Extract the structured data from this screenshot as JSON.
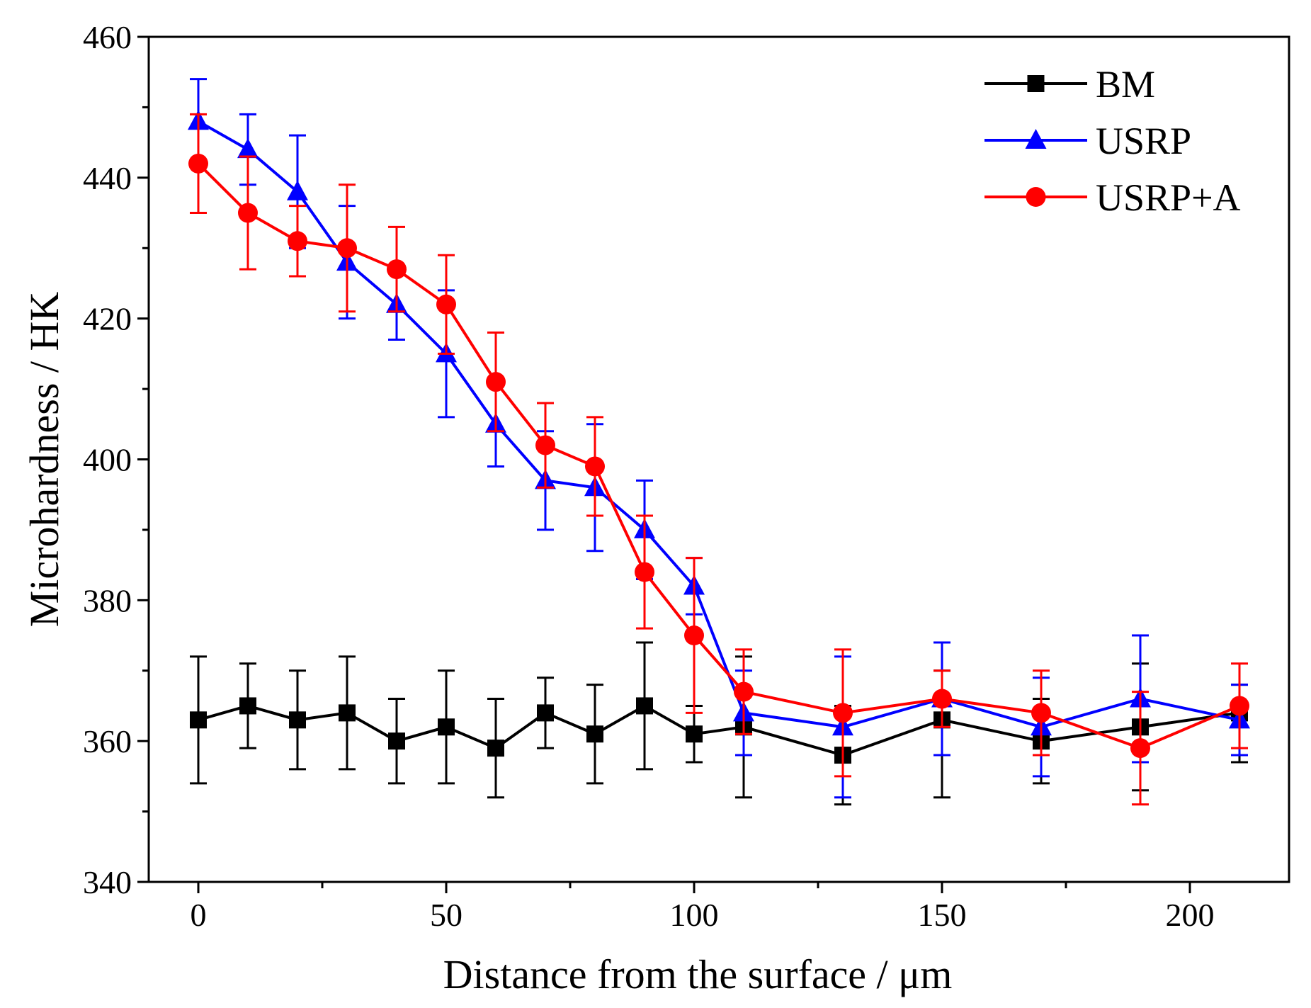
{
  "chart_data": {
    "type": "line",
    "title": "",
    "xlabel": "Distance from the surface / μm",
    "ylabel": "Microhardness / HK",
    "xlim": [
      -10,
      220
    ],
    "ylim": [
      340,
      460
    ],
    "xticks": [
      0,
      50,
      100,
      150,
      200
    ],
    "xtick_labels": [
      "0",
      "50",
      "100",
      "150",
      "200"
    ],
    "yticks": [
      340,
      360,
      380,
      400,
      420,
      440,
      460
    ],
    "ytick_labels": [
      "340",
      "360",
      "380",
      "400",
      "420",
      "440",
      "460"
    ],
    "grid": false,
    "legend_position": "top-right",
    "colors": {
      "BM": "#000000",
      "USRP": "#0000ff",
      "USRP+A": "#ff0000"
    },
    "series": [
      {
        "name": "BM",
        "marker": "square",
        "x": [
          0,
          10,
          20,
          30,
          40,
          50,
          60,
          70,
          80,
          90,
          100,
          110,
          130,
          150,
          170,
          190,
          210
        ],
        "y": [
          363,
          365,
          363,
          364,
          360,
          362,
          359,
          364,
          361,
          365,
          361,
          362,
          358,
          363,
          360,
          362,
          364
        ],
        "err_low": [
          354,
          359,
          356,
          356,
          354,
          354,
          352,
          359,
          354,
          356,
          357,
          352,
          351,
          352,
          354,
          353,
          357
        ],
        "err_high": [
          372,
          371,
          370,
          372,
          366,
          370,
          366,
          369,
          368,
          374,
          365,
          372,
          365,
          370,
          366,
          371,
          368
        ]
      },
      {
        "name": "USRP",
        "marker": "triangle",
        "x": [
          0,
          10,
          20,
          30,
          40,
          50,
          60,
          70,
          80,
          90,
          100,
          110,
          130,
          150,
          170,
          190,
          210
        ],
        "y": [
          448,
          444,
          438,
          428,
          422,
          415,
          405,
          397,
          396,
          390,
          382,
          364,
          362,
          366,
          362,
          366,
          363
        ],
        "err_low": [
          442,
          439,
          430,
          420,
          417,
          406,
          399,
          390,
          387,
          383,
          378,
          358,
          352,
          358,
          355,
          357,
          358
        ],
        "err_high": [
          454,
          449,
          446,
          436,
          427,
          424,
          411,
          404,
          405,
          397,
          386,
          370,
          372,
          374,
          369,
          375,
          368
        ]
      },
      {
        "name": "USRP+A",
        "marker": "circle",
        "x": [
          0,
          10,
          20,
          30,
          40,
          50,
          60,
          70,
          80,
          90,
          100,
          110,
          130,
          150,
          170,
          190,
          210
        ],
        "y": [
          442,
          435,
          431,
          430,
          427,
          422,
          411,
          402,
          399,
          384,
          375,
          367,
          364,
          366,
          364,
          359,
          365
        ],
        "err_low": [
          435,
          427,
          426,
          421,
          421,
          415,
          404,
          396,
          392,
          376,
          364,
          361,
          355,
          362,
          358,
          351,
          359
        ],
        "err_high": [
          449,
          443,
          436,
          439,
          433,
          429,
          418,
          408,
          406,
          392,
          386,
          373,
          373,
          370,
          370,
          367,
          371
        ]
      }
    ]
  }
}
